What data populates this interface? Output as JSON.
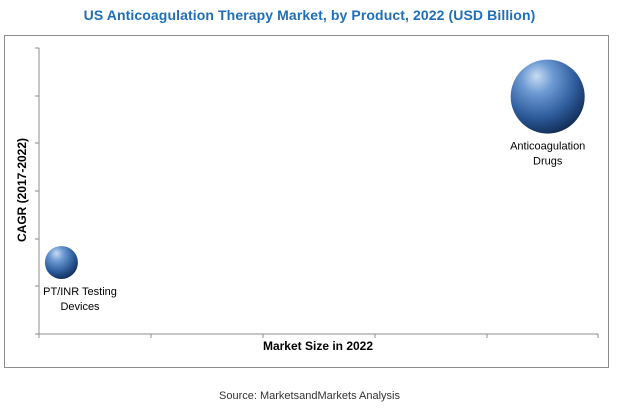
{
  "title": "US Anticoagulation Therapy Market, by Product, 2022 (USD Billion)",
  "source": "Source: MarketsandMarkets Analysis",
  "colors": {
    "title": "#1f6fb8",
    "bubble_light": "#a9c8ec",
    "bubble_mid": "#3f78be",
    "bubble_dark": "#14325e",
    "axis": "#8c8c8c",
    "text": "#000000"
  },
  "chart_data": {
    "type": "scatter",
    "title": "US Anticoagulation Therapy Market, by Product, 2022 (USD Billion)",
    "xlabel": "Market Size in 2022",
    "ylabel": "CAGR (2017-2022)",
    "x_tick_labels": [],
    "y_tick_labels": [],
    "grid": false,
    "legend": "none",
    "points": [
      {
        "label_lines": [
          "Anticoagulation",
          "Drugs"
        ],
        "x": 0.91,
        "y": 0.83,
        "size": 1.0
      },
      {
        "label_lines": [
          "PT/INR Testing",
          "Devices"
        ],
        "x": 0.04,
        "y": 0.25,
        "size": 0.2
      }
    ]
  }
}
